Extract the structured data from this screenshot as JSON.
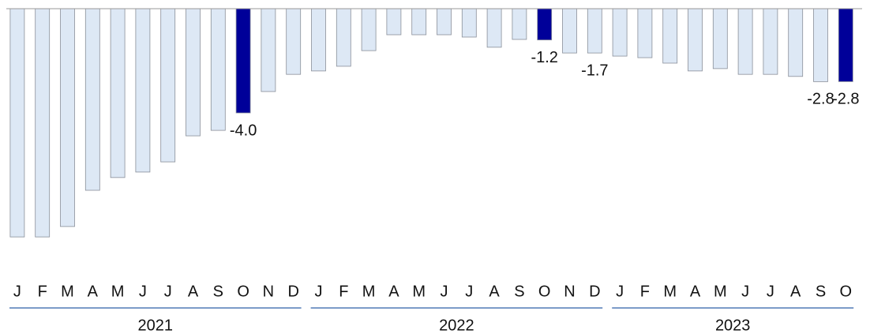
{
  "chart_data": {
    "type": "bar",
    "groups": [
      {
        "label": "2021",
        "categories": [
          "J",
          "F",
          "M",
          "A",
          "M",
          "J",
          "J",
          "A",
          "S",
          "O",
          "N",
          "D"
        ]
      },
      {
        "label": "2022",
        "categories": [
          "J",
          "F",
          "M",
          "A",
          "M",
          "J",
          "J",
          "A",
          "S",
          "O",
          "N",
          "D"
        ]
      },
      {
        "label": "2023",
        "categories": [
          "J",
          "F",
          "M",
          "A",
          "M",
          "J",
          "J",
          "A",
          "S",
          "O"
        ]
      }
    ],
    "values": [
      -8.76,
      -8.76,
      -8.36,
      -6.97,
      -6.48,
      -6.27,
      -5.88,
      -4.88,
      -4.67,
      -4.0,
      -3.18,
      -2.52,
      -2.39,
      -2.21,
      -1.61,
      -1.0,
      -1.0,
      -1.0,
      -1.09,
      -1.48,
      -1.18,
      -1.2,
      -1.7,
      -1.7,
      -1.82,
      -1.88,
      -2.09,
      -2.39,
      -2.3,
      -2.52,
      -2.52,
      -2.6,
      -2.8,
      -2.8
    ],
    "value_labels": [
      null,
      null,
      null,
      null,
      null,
      null,
      null,
      null,
      null,
      "-4.0",
      null,
      null,
      null,
      null,
      null,
      null,
      null,
      null,
      null,
      null,
      null,
      "-1.2",
      null,
      "-1.7",
      null,
      null,
      null,
      null,
      null,
      null,
      null,
      null,
      "-2.8",
      "-2.8"
    ],
    "colors": [
      "#dde8f5",
      "#dde8f5",
      "#dde8f5",
      "#dde8f5",
      "#dde8f5",
      "#dde8f5",
      "#dde8f5",
      "#dde8f5",
      "#dde8f5",
      "#000099",
      "#dde8f5",
      "#dde8f5",
      "#dde8f5",
      "#dde8f5",
      "#dde8f5",
      "#dde8f5",
      "#dde8f5",
      "#dde8f5",
      "#dde8f5",
      "#dde8f5",
      "#dde8f5",
      "#000099",
      "#dde8f5",
      "#dde8f5",
      "#dde8f5",
      "#dde8f5",
      "#dde8f5",
      "#dde8f5",
      "#dde8f5",
      "#dde8f5",
      "#dde8f5",
      "#dde8f5",
      "#dde8f5",
      "#000099"
    ],
    "ylim": [
      -9,
      0
    ]
  }
}
